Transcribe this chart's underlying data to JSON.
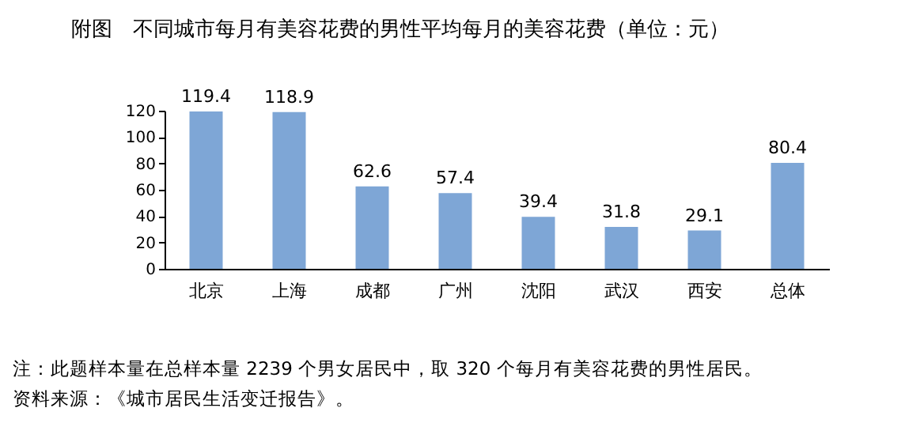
{
  "chart_data": {
    "type": "bar",
    "title": "附图　不同城市每月有美容花费的男性平均每月的美容花费（单位：元）",
    "categories": [
      "北京",
      "上海",
      "成都",
      "广州",
      "沈阳",
      "武汉",
      "西安",
      "总体"
    ],
    "values": [
      119.4,
      118.9,
      62.6,
      57.4,
      39.4,
      31.8,
      29.1,
      80.4
    ],
    "color": "#7ea6d6",
    "ylim": [
      0,
      120
    ],
    "yticks": [
      0,
      20,
      40,
      60,
      80,
      100,
      120
    ],
    "grid": false,
    "data_labels": true,
    "annotations": [
      "注：此题样本量在总样本量 2239 个男女居民中，取 320 个每月有美容花费的男性居民。",
      "资料来源：《城市居民生活变迁报告》。"
    ]
  }
}
